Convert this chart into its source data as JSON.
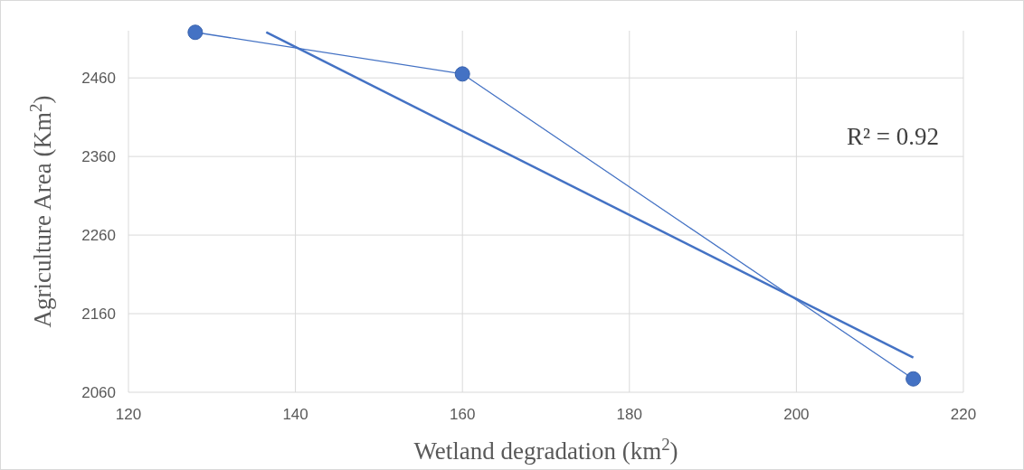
{
  "chart_data": {
    "type": "line",
    "xlabel": "Wetland degradation (km$^{2}$)",
    "ylabel": "Agriculture Area  (Km$^{2}$)",
    "xlim": [
      120,
      220
    ],
    "xticks": [
      120,
      140,
      160,
      180,
      200,
      220
    ],
    "ylim": [
      2060,
      2520
    ],
    "yticks": [
      2060,
      2160,
      2260,
      2360,
      2460
    ],
    "grid": true,
    "series": [
      {
        "color": "#4472c4",
        "marker": "circle",
        "x": [
          128,
          160,
          214
        ],
        "values": [
          2518,
          2465,
          2077
        ]
      },
      {
        "color": "#4472c4",
        "marker": "none",
        "x": [
          136.5,
          214
        ],
        "values": [
          2518,
          2104
        ]
      }
    ],
    "annotations": [
      "R² = 0.92"
    ]
  }
}
